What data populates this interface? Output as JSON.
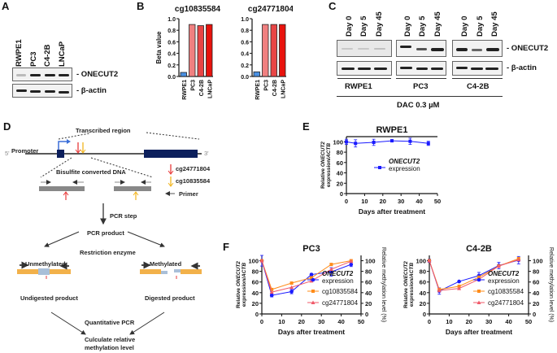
{
  "panels": {
    "A": {
      "label": "A",
      "lanes": [
        "RWPE1",
        "PC3",
        "C4-2B",
        "LNCaP"
      ],
      "rows": [
        "- ONECUT2",
        "- β-actin"
      ]
    },
    "B": {
      "label": "B"
    },
    "C": {
      "label": "C",
      "lanes": [
        "Day 0",
        "Day 5",
        "Day 45"
      ],
      "groups": [
        "RWPE1",
        "PC3",
        "C4-2B"
      ],
      "rows": [
        "- ONECUT2",
        "- β-actin"
      ],
      "treatment": "DAC 0.3 µM"
    },
    "D": {
      "label": "D",
      "transcribed_region": "Transcribed region",
      "promoter": "Promoter",
      "five_prime": "5'",
      "three_prime": "3'",
      "bisulfite": "Bisulfite converted DNA",
      "legend": [
        {
          "label": "cg24771804",
          "color": "#e83a3a"
        },
        {
          "label": "cg10835584",
          "color": "#f2b51d"
        },
        {
          "label": "Primer",
          "color": "#555555"
        }
      ],
      "pcr_step": "PCR step",
      "pcr_product": "PCR product",
      "restriction_enzyme": "Restriction enzyme",
      "unmethylated": "Unmethylated",
      "methylated": "Methylated",
      "undigested": "Undigested product",
      "digested": "Digested product",
      "qpcr": "Quantitative PCR",
      "calc_line1": "Culculate relative",
      "calc_line2": "methylation level"
    },
    "E": {
      "label": "E"
    },
    "F": {
      "label": "F"
    }
  },
  "chart_data": [
    {
      "id": "B1",
      "type": "bar",
      "title": "cg10835584",
      "ylabel": "Beta value",
      "xlabel": "",
      "categories": [
        "RWPE1",
        "PC3",
        "C4-2B",
        "LNCaP"
      ],
      "values": [
        0.07,
        0.9,
        0.88,
        0.9
      ],
      "colors": [
        "#4a90e2",
        "#f08080",
        "#e84545",
        "#e8120c"
      ],
      "ylim": [
        0,
        1.0
      ],
      "yticks": [
        "0.0",
        "0.2",
        "0.4",
        "0.6",
        "0.8",
        "1.0"
      ]
    },
    {
      "id": "B2",
      "type": "bar",
      "title": "cg24771804",
      "ylabel": "",
      "xlabel": "",
      "categories": [
        "RWPE1",
        "PC3",
        "C4-2B",
        "LNCaP"
      ],
      "values": [
        0.08,
        0.9,
        0.9,
        0.9
      ],
      "colors": [
        "#4a90e2",
        "#f08080",
        "#e84545",
        "#e8120c"
      ],
      "ylim": [
        0,
        1.0
      ],
      "yticks": [
        "0.0",
        "0.2",
        "0.4",
        "0.6",
        "0.8",
        "1.0"
      ]
    },
    {
      "id": "E",
      "type": "line",
      "title": "RWPE1",
      "xlabel": "Days after treatment",
      "ylabel_line1": "Relative ONECUT2",
      "ylabel_line2": "expression/ACTB",
      "xlim": [
        0,
        50
      ],
      "ylim": [
        0,
        110
      ],
      "xticks": [
        "0",
        "10",
        "20",
        "30",
        "40",
        "50"
      ],
      "yticks": [
        "0",
        "20",
        "40",
        "60",
        "80",
        "100"
      ],
      "legend_placement": "center-right",
      "series": [
        {
          "name": "ONECUT2 expression",
          "legend_italic": "ONECUT2",
          "legend_rest": "expression",
          "color": "#1a1aff",
          "marker": "square",
          "x": [
            0,
            5,
            15,
            25,
            35,
            45
          ],
          "y": [
            100,
            97,
            99,
            102,
            101,
            97
          ],
          "err": [
            5,
            7,
            6,
            1,
            6,
            4
          ]
        }
      ]
    },
    {
      "id": "F1",
      "type": "line",
      "title": "PC3",
      "xlabel": "Days after treatment",
      "ylabel_line1": "Relative ONECUT2",
      "ylabel_line2": "expression/ACTB",
      "y2label": "Relative methylation level (%)",
      "xlim": [
        0,
        50
      ],
      "ylim": [
        0,
        110
      ],
      "xticks": [
        "0",
        "10",
        "20",
        "30",
        "40",
        "50"
      ],
      "yticks": [
        "0",
        "20",
        "40",
        "60",
        "80",
        "100"
      ],
      "legend_placement": "lower-right",
      "series": [
        {
          "name": "ONECUT2 expression",
          "legend_italic": "ONECUT2",
          "legend_rest": "expression",
          "color": "#1a1aff",
          "marker": "circle",
          "x": [
            0,
            5,
            15,
            25,
            35,
            45
          ],
          "y": [
            100,
            35,
            42,
            74,
            79,
            93
          ],
          "err": [
            10,
            3,
            4,
            2,
            8,
            4
          ]
        },
        {
          "name": "cg10835584",
          "legend_italic": "",
          "legend_rest": "cg10835584",
          "color": "#ff8c1a",
          "marker": "square",
          "x": [
            0,
            5,
            15,
            25,
            35,
            45
          ],
          "y": [
            100,
            46,
            58,
            68,
            93,
            100
          ],
          "err": [
            0,
            0,
            0,
            0,
            0,
            0
          ]
        },
        {
          "name": "cg24771804",
          "legend_italic": "",
          "legend_rest": "cg24771804",
          "color": "#f05a6a",
          "marker": "triangle",
          "x": [
            0,
            5,
            15,
            25,
            35,
            45
          ],
          "y": [
            100,
            41,
            50,
            62,
            84,
            99
          ],
          "err": [
            0,
            0,
            0,
            0,
            0,
            0
          ]
        }
      ]
    },
    {
      "id": "F2",
      "type": "line",
      "title": "C4-2B",
      "xlabel": "Days after treatment",
      "ylabel_line1": "Relative ONECUT2",
      "ylabel_line2": "expression/ACTB",
      "y2label": "Relative methylation level (%)",
      "xlim": [
        0,
        50
      ],
      "ylim": [
        0,
        110
      ],
      "xticks": [
        "0",
        "10",
        "20",
        "30",
        "40",
        "50"
      ],
      "yticks": [
        "0",
        "20",
        "40",
        "60",
        "80",
        "100"
      ],
      "legend_placement": "lower-right",
      "series": [
        {
          "name": "ONECUT2 expression",
          "legend_italic": "ONECUT2",
          "legend_rest": "expression",
          "color": "#1a1aff",
          "marker": "circle",
          "x": [
            0,
            5,
            15,
            25,
            35,
            45
          ],
          "y": [
            100,
            43,
            61,
            72,
            91,
            101
          ],
          "err": [
            3,
            6,
            1,
            6,
            6,
            7
          ]
        },
        {
          "name": "cg10835584",
          "legend_italic": "",
          "legend_rest": "cg10835584",
          "color": "#ff8c1a",
          "marker": "square",
          "x": [
            0,
            5,
            15,
            25,
            35,
            45
          ],
          "y": [
            100,
            46,
            52,
            69,
            90,
            104
          ],
          "err": [
            0,
            0,
            0,
            0,
            0,
            0
          ]
        },
        {
          "name": "cg24771804",
          "legend_italic": "",
          "legend_rest": "cg24771804",
          "color": "#f05a6a",
          "marker": "triangle",
          "x": [
            0,
            5,
            15,
            25,
            35,
            45
          ],
          "y": [
            100,
            44,
            48,
            65,
            90,
            102
          ],
          "err": [
            0,
            0,
            0,
            0,
            0,
            0
          ]
        }
      ]
    }
  ]
}
